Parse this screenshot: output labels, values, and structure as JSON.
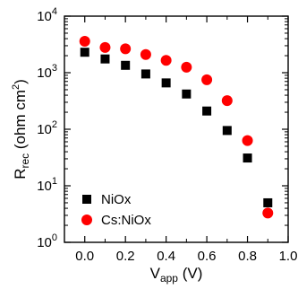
{
  "chart_data": {
    "type": "scatter",
    "xlabel": {
      "main": "V",
      "sub": "app",
      "unit": " (V)"
    },
    "ylabel": {
      "main": "R",
      "sub": "rec",
      "unit": " (ohm cm",
      "sup": "2",
      "close": ")"
    },
    "xlim": [
      -0.1,
      1.0
    ],
    "ylim_log10": [
      0,
      4
    ],
    "yscale": "log",
    "x_ticks": [
      0.0,
      0.2,
      0.4,
      0.6,
      0.8,
      1.0
    ],
    "x_tick_labels": [
      "0.0",
      "0.2",
      "0.4",
      "0.6",
      "0.8",
      "1.0"
    ],
    "y_ticks": [
      {
        "base": "10",
        "exp": "0"
      },
      {
        "base": "10",
        "exp": "1"
      },
      {
        "base": "10",
        "exp": "2"
      },
      {
        "base": "10",
        "exp": "3"
      },
      {
        "base": "10",
        "exp": "4"
      }
    ],
    "legend_position": "bottom-left",
    "series": [
      {
        "name": "NiOx",
        "marker": "square",
        "color": "#000000",
        "x": [
          0.0,
          0.1,
          0.2,
          0.3,
          0.4,
          0.5,
          0.6,
          0.7,
          0.8,
          0.9
        ],
        "y": [
          2300,
          1750,
          1350,
          950,
          660,
          420,
          210,
          95,
          31,
          5
        ]
      },
      {
        "name": "Cs:NiOx",
        "marker": "circle",
        "color": "#ff0000",
        "x": [
          0.0,
          0.1,
          0.2,
          0.3,
          0.4,
          0.5,
          0.6,
          0.7,
          0.8,
          0.9
        ],
        "y": [
          3600,
          2800,
          2650,
          2100,
          1650,
          1250,
          750,
          320,
          63,
          3.3
        ]
      }
    ]
  }
}
